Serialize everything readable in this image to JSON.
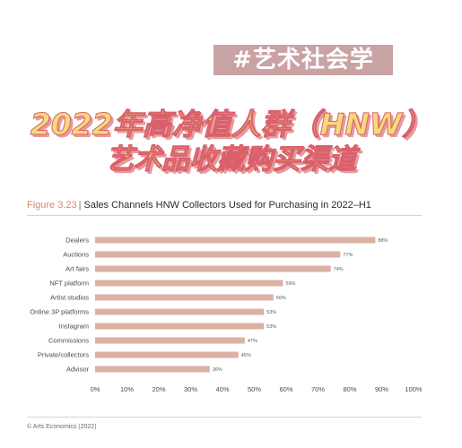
{
  "hashtag": "#艺术社会学",
  "headline": {
    "line1": "2022年高净值人群（HNW）",
    "line2": "艺术品收藏购买渠道"
  },
  "figure": {
    "number": "Figure 3.23",
    "separator": "|",
    "title": "Sales Channels HNW Collectors Used for Purchasing in 2022–H1"
  },
  "credit": "© Arts Economics (2022)",
  "colors": {
    "bar": "#dbb1a3",
    "accent": "#d98a6a"
  },
  "chart_data": {
    "type": "bar",
    "orientation": "horizontal",
    "title": "Sales Channels HNW Collectors Used for Purchasing in 2022–H1",
    "categories": [
      "Dealers",
      "Auctions",
      "Art fairs",
      "NFT platform",
      "Artist studios",
      "Online 3P platforms",
      "Instagram",
      "Commissions",
      "Private/collectors",
      "Advisor"
    ],
    "values": [
      88,
      77,
      74,
      59,
      56,
      53,
      53,
      47,
      45,
      36
    ],
    "value_labels": [
      "88%",
      "77%",
      "74%",
      "59%",
      "56%",
      "53%",
      "53%",
      "47%",
      "45%",
      "36%"
    ],
    "xlim": [
      0,
      100
    ],
    "x_ticks": [
      0,
      10,
      20,
      30,
      40,
      50,
      60,
      70,
      80,
      90,
      100
    ],
    "x_tick_labels": [
      "0%",
      "10%",
      "20%",
      "30%",
      "40%",
      "50%",
      "60%",
      "70%",
      "80%",
      "90%",
      "100%"
    ],
    "grid": false,
    "legend": "none"
  }
}
